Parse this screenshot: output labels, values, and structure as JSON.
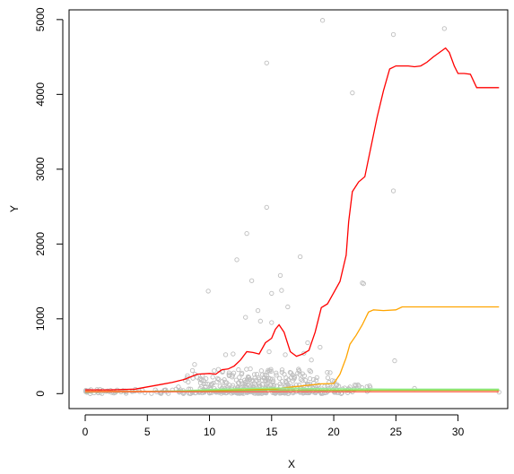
{
  "chart_data": {
    "type": "scatter",
    "title": "",
    "xlabel": "X",
    "ylabel": "Y",
    "xlim": [
      -1.3,
      34.0
    ],
    "ylim": [
      -200,
      5130
    ],
    "xticks": [
      0,
      5,
      10,
      15,
      20,
      25,
      30
    ],
    "yticks": [
      0,
      1000,
      2000,
      3000,
      4000,
      5000
    ],
    "grid": false,
    "legend": "none",
    "point_color": "#bebebe",
    "scatter_highlights": [
      {
        "x": 19.1,
        "y": 4990
      },
      {
        "x": 28.9,
        "y": 4880
      },
      {
        "x": 24.8,
        "y": 4800
      },
      {
        "x": 14.6,
        "y": 4420
      },
      {
        "x": 21.5,
        "y": 4020
      },
      {
        "x": 24.8,
        "y": 2710
      },
      {
        "x": 14.6,
        "y": 2490
      },
      {
        "x": 13.0,
        "y": 2140
      },
      {
        "x": 17.3,
        "y": 1830
      },
      {
        "x": 12.2,
        "y": 1790
      },
      {
        "x": 15.7,
        "y": 1580
      },
      {
        "x": 13.4,
        "y": 1510
      },
      {
        "x": 22.3,
        "y": 1480
      },
      {
        "x": 22.4,
        "y": 1470
      },
      {
        "x": 9.9,
        "y": 1370
      },
      {
        "x": 15.8,
        "y": 1380
      },
      {
        "x": 15.0,
        "y": 1340
      },
      {
        "x": 13.9,
        "y": 1110
      },
      {
        "x": 16.3,
        "y": 1160
      },
      {
        "x": 12.9,
        "y": 1020
      },
      {
        "x": 14.1,
        "y": 970
      },
      {
        "x": 15.0,
        "y": 950
      },
      {
        "x": 17.9,
        "y": 680
      },
      {
        "x": 18.9,
        "y": 620
      },
      {
        "x": 17.6,
        "y": 540
      },
      {
        "x": 18.2,
        "y": 450
      },
      {
        "x": 24.9,
        "y": 440
      },
      {
        "x": 8.8,
        "y": 390
      },
      {
        "x": 11.3,
        "y": 520
      },
      {
        "x": 11.9,
        "y": 530
      },
      {
        "x": 14.8,
        "y": 560
      },
      {
        "x": 16.1,
        "y": 520
      },
      {
        "x": 20.2,
        "y": 110
      },
      {
        "x": 26.5,
        "y": 70
      },
      {
        "x": 33.3,
        "y": 20
      },
      {
        "x": 0.1,
        "y": 25
      },
      {
        "x": 2.5,
        "y": 30
      },
      {
        "x": 7.5,
        "y": 90
      }
    ],
    "series": [
      {
        "color": "#ff0000",
        "x": [
          0,
          2,
          4,
          5,
          6,
          7,
          8,
          9,
          10,
          10.5,
          11,
          11.5,
          12,
          12.5,
          13,
          13.5,
          14,
          14.5,
          15,
          15.3,
          15.6,
          16,
          16.5,
          17,
          17.5,
          18,
          18.5,
          19,
          19.5,
          20,
          20.5,
          21,
          21.2,
          21.5,
          22,
          22.5,
          23,
          23.5,
          24,
          24.5,
          25,
          25.5,
          26,
          26.5,
          27,
          27.5,
          28,
          28.5,
          29,
          29.3,
          29.7,
          30,
          30.5,
          31,
          31.5,
          32,
          33.3
        ],
        "y": [
          50,
          50,
          60,
          90,
          120,
          150,
          190,
          260,
          270,
          260,
          320,
          330,
          370,
          450,
          560,
          550,
          530,
          680,
          740,
          860,
          920,
          820,
          560,
          500,
          530,
          580,
          820,
          1150,
          1200,
          1350,
          1500,
          1850,
          2300,
          2700,
          2830,
          2900,
          3300,
          3700,
          4050,
          4340,
          4380,
          4380,
          4380,
          4370,
          4380,
          4430,
          4500,
          4560,
          4620,
          4560,
          4380,
          4280,
          4280,
          4270,
          4090,
          4090,
          4090
        ]
      },
      {
        "color": "#ffa500",
        "x": [
          0,
          5,
          10,
          15,
          19,
          20,
          20.5,
          21,
          21.3,
          21.8,
          22.3,
          22.8,
          23.2,
          24,
          25,
          25.5,
          26,
          28,
          30,
          33.3
        ],
        "y": [
          30,
          30,
          40,
          60,
          130,
          135,
          260,
          480,
          660,
          780,
          920,
          1090,
          1120,
          1110,
          1120,
          1160,
          1160,
          1160,
          1160,
          1160
        ]
      },
      {
        "color": "#90ee90",
        "x": [
          0,
          5,
          8,
          10,
          12,
          15,
          18,
          20,
          25,
          30,
          33.3
        ],
        "y": [
          20,
          25,
          40,
          55,
          65,
          75,
          70,
          65,
          60,
          60,
          60
        ]
      },
      {
        "color": "#9acd32",
        "x": [
          0,
          5,
          10,
          15,
          20,
          25,
          33.3
        ],
        "y": [
          20,
          25,
          40,
          50,
          45,
          45,
          45
        ]
      },
      {
        "color": "#ff6347",
        "x": [
          0,
          5,
          10,
          15,
          20,
          25,
          33.3
        ],
        "y": [
          25,
          25,
          25,
          25,
          25,
          25,
          25
        ]
      }
    ]
  }
}
